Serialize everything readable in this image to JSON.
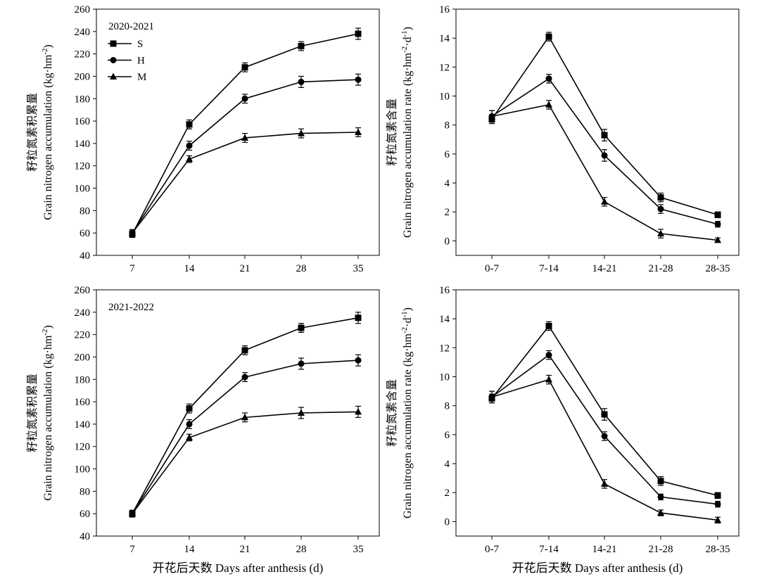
{
  "xlabel_shared": "开花后天数 Days after anthesis (d)",
  "chart_data": [
    {
      "id": "acc_2020",
      "type": "line",
      "annotation": "2020-2021",
      "ylabel_cn": "籽粒氮素积累量",
      "ylabel_en": "Grain nitrogen accumulation (kg·hm",
      "ylabel_sup": "-2",
      "ylabel_end": ")",
      "categories": [
        "7",
        "14",
        "21",
        "28",
        "35"
      ],
      "ylim": [
        40,
        260
      ],
      "yticks": [
        40,
        60,
        80,
        100,
        120,
        140,
        160,
        180,
        200,
        220,
        240,
        260
      ],
      "legend": {
        "placement": "top-left",
        "show": true
      },
      "series": [
        {
          "name": "S",
          "marker": "square",
          "values": [
            59,
            157,
            208,
            227,
            238
          ],
          "errors": [
            3,
            4,
            4,
            4,
            5
          ]
        },
        {
          "name": "H",
          "marker": "circle",
          "values": [
            60,
            138,
            180,
            195,
            197
          ],
          "errors": [
            3,
            4,
            4,
            5,
            5
          ]
        },
        {
          "name": "M",
          "marker": "triangle",
          "values": [
            60,
            126,
            145,
            149,
            150
          ],
          "errors": [
            3,
            3,
            4,
            4,
            4
          ]
        }
      ]
    },
    {
      "id": "rate_2020",
      "type": "line",
      "ylabel_cn": "籽粒氮素含量",
      "ylabel_en": "Grain nitrogen accumulation rate (kg·hm",
      "ylabel_sup": "-2",
      "ylabel_mid": "·d",
      "ylabel_sup2": "-1",
      "ylabel_end": ")",
      "categories": [
        "0-7",
        "7-14",
        "14-21",
        "21-28",
        "28-35"
      ],
      "ylim": [
        -1,
        16
      ],
      "yticks": [
        0,
        2,
        4,
        6,
        8,
        10,
        12,
        14,
        16
      ],
      "legend": {
        "show": false
      },
      "series": [
        {
          "name": "S",
          "marker": "square",
          "values": [
            8.4,
            14.1,
            7.3,
            3.0,
            1.8
          ],
          "errors": [
            0.3,
            0.3,
            0.4,
            0.3,
            0.2
          ]
        },
        {
          "name": "H",
          "marker": "circle",
          "values": [
            8.6,
            11.2,
            5.9,
            2.2,
            1.15
          ],
          "errors": [
            0.4,
            0.3,
            0.4,
            0.3,
            0.2
          ]
        },
        {
          "name": "M",
          "marker": "triangle",
          "values": [
            8.6,
            9.4,
            2.7,
            0.5,
            0.05
          ],
          "errors": [
            0.4,
            0.3,
            0.3,
            0.3,
            0.15
          ]
        }
      ]
    },
    {
      "id": "acc_2021",
      "type": "line",
      "annotation": "2021-2022",
      "ylabel_cn": "籽粒氮素积累量",
      "ylabel_en": "Grain nitrogen accumulation (kg·hm",
      "ylabel_sup": "-2",
      "ylabel_end": ")",
      "categories": [
        "7",
        "14",
        "21",
        "28",
        "35"
      ],
      "ylim": [
        40,
        260
      ],
      "yticks": [
        40,
        60,
        80,
        100,
        120,
        140,
        160,
        180,
        200,
        220,
        240,
        260
      ],
      "legend": {
        "show": false
      },
      "series": [
        {
          "name": "S",
          "marker": "square",
          "values": [
            60,
            154,
            206,
            226,
            235
          ],
          "errors": [
            3,
            4,
            4,
            4,
            5
          ]
        },
        {
          "name": "H",
          "marker": "circle",
          "values": [
            60,
            140,
            182,
            194,
            197
          ],
          "errors": [
            3,
            4,
            4,
            5,
            5
          ]
        },
        {
          "name": "M",
          "marker": "triangle",
          "values": [
            60,
            128,
            146,
            150,
            151
          ],
          "errors": [
            3,
            3,
            4,
            5,
            5
          ]
        }
      ]
    },
    {
      "id": "rate_2021",
      "type": "line",
      "ylabel_cn": "籽粒氮素含量",
      "ylabel_en": "Grain nitrogen accumulation rate (kg·hm",
      "ylabel_sup": "-2",
      "ylabel_mid": "·d",
      "ylabel_sup2": "-1",
      "ylabel_end": ")",
      "categories": [
        "0-7",
        "7-14",
        "14-21",
        "21-28",
        "28-35"
      ],
      "ylim": [
        -1,
        16
      ],
      "yticks": [
        0,
        2,
        4,
        6,
        8,
        10,
        12,
        14,
        16
      ],
      "legend": {
        "show": false
      },
      "series": [
        {
          "name": "S",
          "marker": "square",
          "values": [
            8.5,
            13.5,
            7.4,
            2.8,
            1.8
          ],
          "errors": [
            0.3,
            0.3,
            0.4,
            0.3,
            0.2
          ]
        },
        {
          "name": "H",
          "marker": "circle",
          "values": [
            8.6,
            11.5,
            5.9,
            1.7,
            1.2
          ],
          "errors": [
            0.4,
            0.3,
            0.3,
            0.2,
            0.2
          ]
        },
        {
          "name": "M",
          "marker": "triangle",
          "values": [
            8.6,
            9.8,
            2.6,
            0.6,
            0.1
          ],
          "errors": [
            0.4,
            0.3,
            0.3,
            0.2,
            0.2
          ]
        }
      ]
    }
  ]
}
